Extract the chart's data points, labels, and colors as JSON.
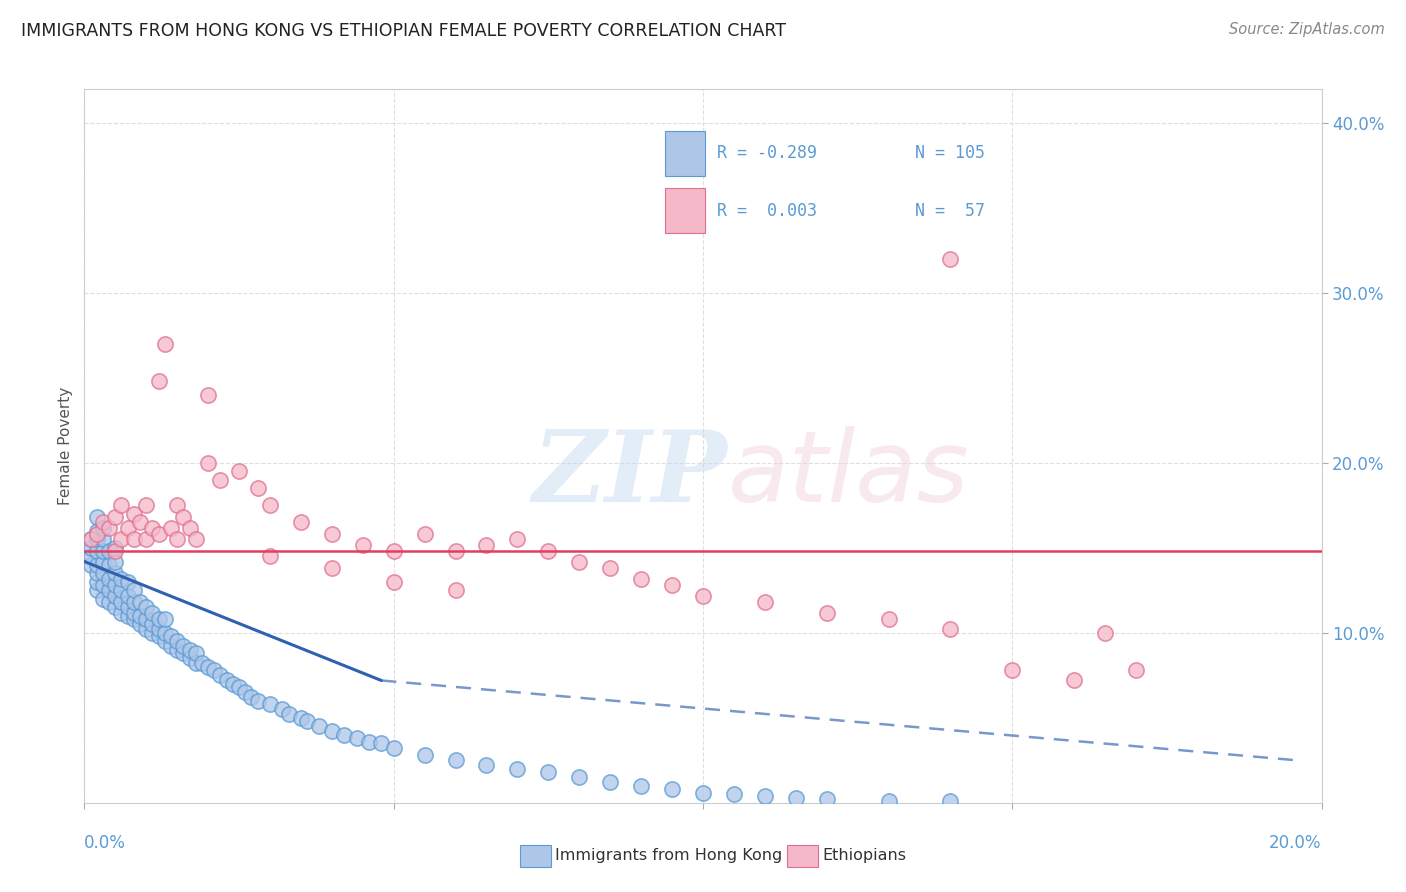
{
  "title": "IMMIGRANTS FROM HONG KONG VS ETHIOPIAN FEMALE POVERTY CORRELATION CHART",
  "source": "Source: ZipAtlas.com",
  "ylabel": "Female Poverty",
  "color_blue": "#aec6e8",
  "color_pink": "#f4b8c8",
  "color_blue_dark": "#5b9bd5",
  "color_pink_dark": "#e07090",
  "color_line_blue": "#3060b0",
  "color_line_pink": "#e04060",
  "xlim": [
    0.0,
    0.2
  ],
  "ylim": [
    0.0,
    0.42
  ],
  "hk_scatter_x": [
    0.001,
    0.001,
    0.001,
    0.001,
    0.002,
    0.002,
    0.002,
    0.002,
    0.002,
    0.002,
    0.002,
    0.002,
    0.003,
    0.003,
    0.003,
    0.003,
    0.003,
    0.003,
    0.003,
    0.004,
    0.004,
    0.004,
    0.004,
    0.004,
    0.005,
    0.005,
    0.005,
    0.005,
    0.005,
    0.005,
    0.006,
    0.006,
    0.006,
    0.006,
    0.007,
    0.007,
    0.007,
    0.007,
    0.008,
    0.008,
    0.008,
    0.008,
    0.009,
    0.009,
    0.009,
    0.01,
    0.01,
    0.01,
    0.011,
    0.011,
    0.011,
    0.012,
    0.012,
    0.012,
    0.013,
    0.013,
    0.013,
    0.014,
    0.014,
    0.015,
    0.015,
    0.016,
    0.016,
    0.017,
    0.017,
    0.018,
    0.018,
    0.019,
    0.02,
    0.021,
    0.022,
    0.023,
    0.024,
    0.025,
    0.026,
    0.027,
    0.028,
    0.03,
    0.032,
    0.033,
    0.035,
    0.036,
    0.038,
    0.04,
    0.042,
    0.044,
    0.046,
    0.048,
    0.05,
    0.055,
    0.06,
    0.065,
    0.07,
    0.075,
    0.08,
    0.085,
    0.09,
    0.095,
    0.1,
    0.105,
    0.11,
    0.115,
    0.12,
    0.13,
    0.14
  ],
  "hk_scatter_y": [
    0.14,
    0.145,
    0.15,
    0.155,
    0.125,
    0.13,
    0.135,
    0.14,
    0.148,
    0.155,
    0.16,
    0.168,
    0.12,
    0.128,
    0.135,
    0.142,
    0.148,
    0.155,
    0.162,
    0.118,
    0.125,
    0.132,
    0.14,
    0.148,
    0.115,
    0.122,
    0.128,
    0.135,
    0.142,
    0.15,
    0.112,
    0.118,
    0.125,
    0.132,
    0.11,
    0.115,
    0.122,
    0.13,
    0.108,
    0.112,
    0.118,
    0.125,
    0.105,
    0.11,
    0.118,
    0.102,
    0.108,
    0.115,
    0.1,
    0.105,
    0.112,
    0.098,
    0.102,
    0.108,
    0.095,
    0.1,
    0.108,
    0.092,
    0.098,
    0.09,
    0.095,
    0.088,
    0.092,
    0.085,
    0.09,
    0.082,
    0.088,
    0.082,
    0.08,
    0.078,
    0.075,
    0.072,
    0.07,
    0.068,
    0.065,
    0.062,
    0.06,
    0.058,
    0.055,
    0.052,
    0.05,
    0.048,
    0.045,
    0.042,
    0.04,
    0.038,
    0.036,
    0.035,
    0.032,
    0.028,
    0.025,
    0.022,
    0.02,
    0.018,
    0.015,
    0.012,
    0.01,
    0.008,
    0.006,
    0.005,
    0.004,
    0.003,
    0.002,
    0.001,
    0.001
  ],
  "eth_scatter_x": [
    0.001,
    0.002,
    0.003,
    0.004,
    0.005,
    0.005,
    0.006,
    0.006,
    0.007,
    0.008,
    0.008,
    0.009,
    0.01,
    0.01,
    0.011,
    0.012,
    0.013,
    0.014,
    0.015,
    0.015,
    0.016,
    0.017,
    0.018,
    0.02,
    0.022,
    0.025,
    0.028,
    0.03,
    0.035,
    0.04,
    0.045,
    0.05,
    0.055,
    0.06,
    0.065,
    0.07,
    0.075,
    0.08,
    0.085,
    0.09,
    0.095,
    0.1,
    0.11,
    0.12,
    0.13,
    0.14,
    0.15,
    0.16,
    0.165,
    0.17,
    0.012,
    0.02,
    0.03,
    0.04,
    0.05,
    0.06,
    0.14
  ],
  "eth_scatter_y": [
    0.155,
    0.158,
    0.165,
    0.162,
    0.148,
    0.168,
    0.175,
    0.155,
    0.162,
    0.17,
    0.155,
    0.165,
    0.175,
    0.155,
    0.162,
    0.158,
    0.27,
    0.162,
    0.175,
    0.155,
    0.168,
    0.162,
    0.155,
    0.2,
    0.19,
    0.195,
    0.185,
    0.175,
    0.165,
    0.158,
    0.152,
    0.148,
    0.158,
    0.148,
    0.152,
    0.155,
    0.148,
    0.142,
    0.138,
    0.132,
    0.128,
    0.122,
    0.118,
    0.112,
    0.108,
    0.102,
    0.078,
    0.072,
    0.1,
    0.078,
    0.248,
    0.24,
    0.145,
    0.138,
    0.13,
    0.125,
    0.32
  ],
  "trend_hk_x0": 0.0,
  "trend_hk_y0": 0.142,
  "trend_hk_x1": 0.048,
  "trend_hk_y1": 0.072,
  "trend_hk_dash_x0": 0.048,
  "trend_hk_dash_y0": 0.072,
  "trend_hk_dash_x1": 0.196,
  "trend_hk_dash_y1": 0.025,
  "trend_eth_y": 0.148
}
